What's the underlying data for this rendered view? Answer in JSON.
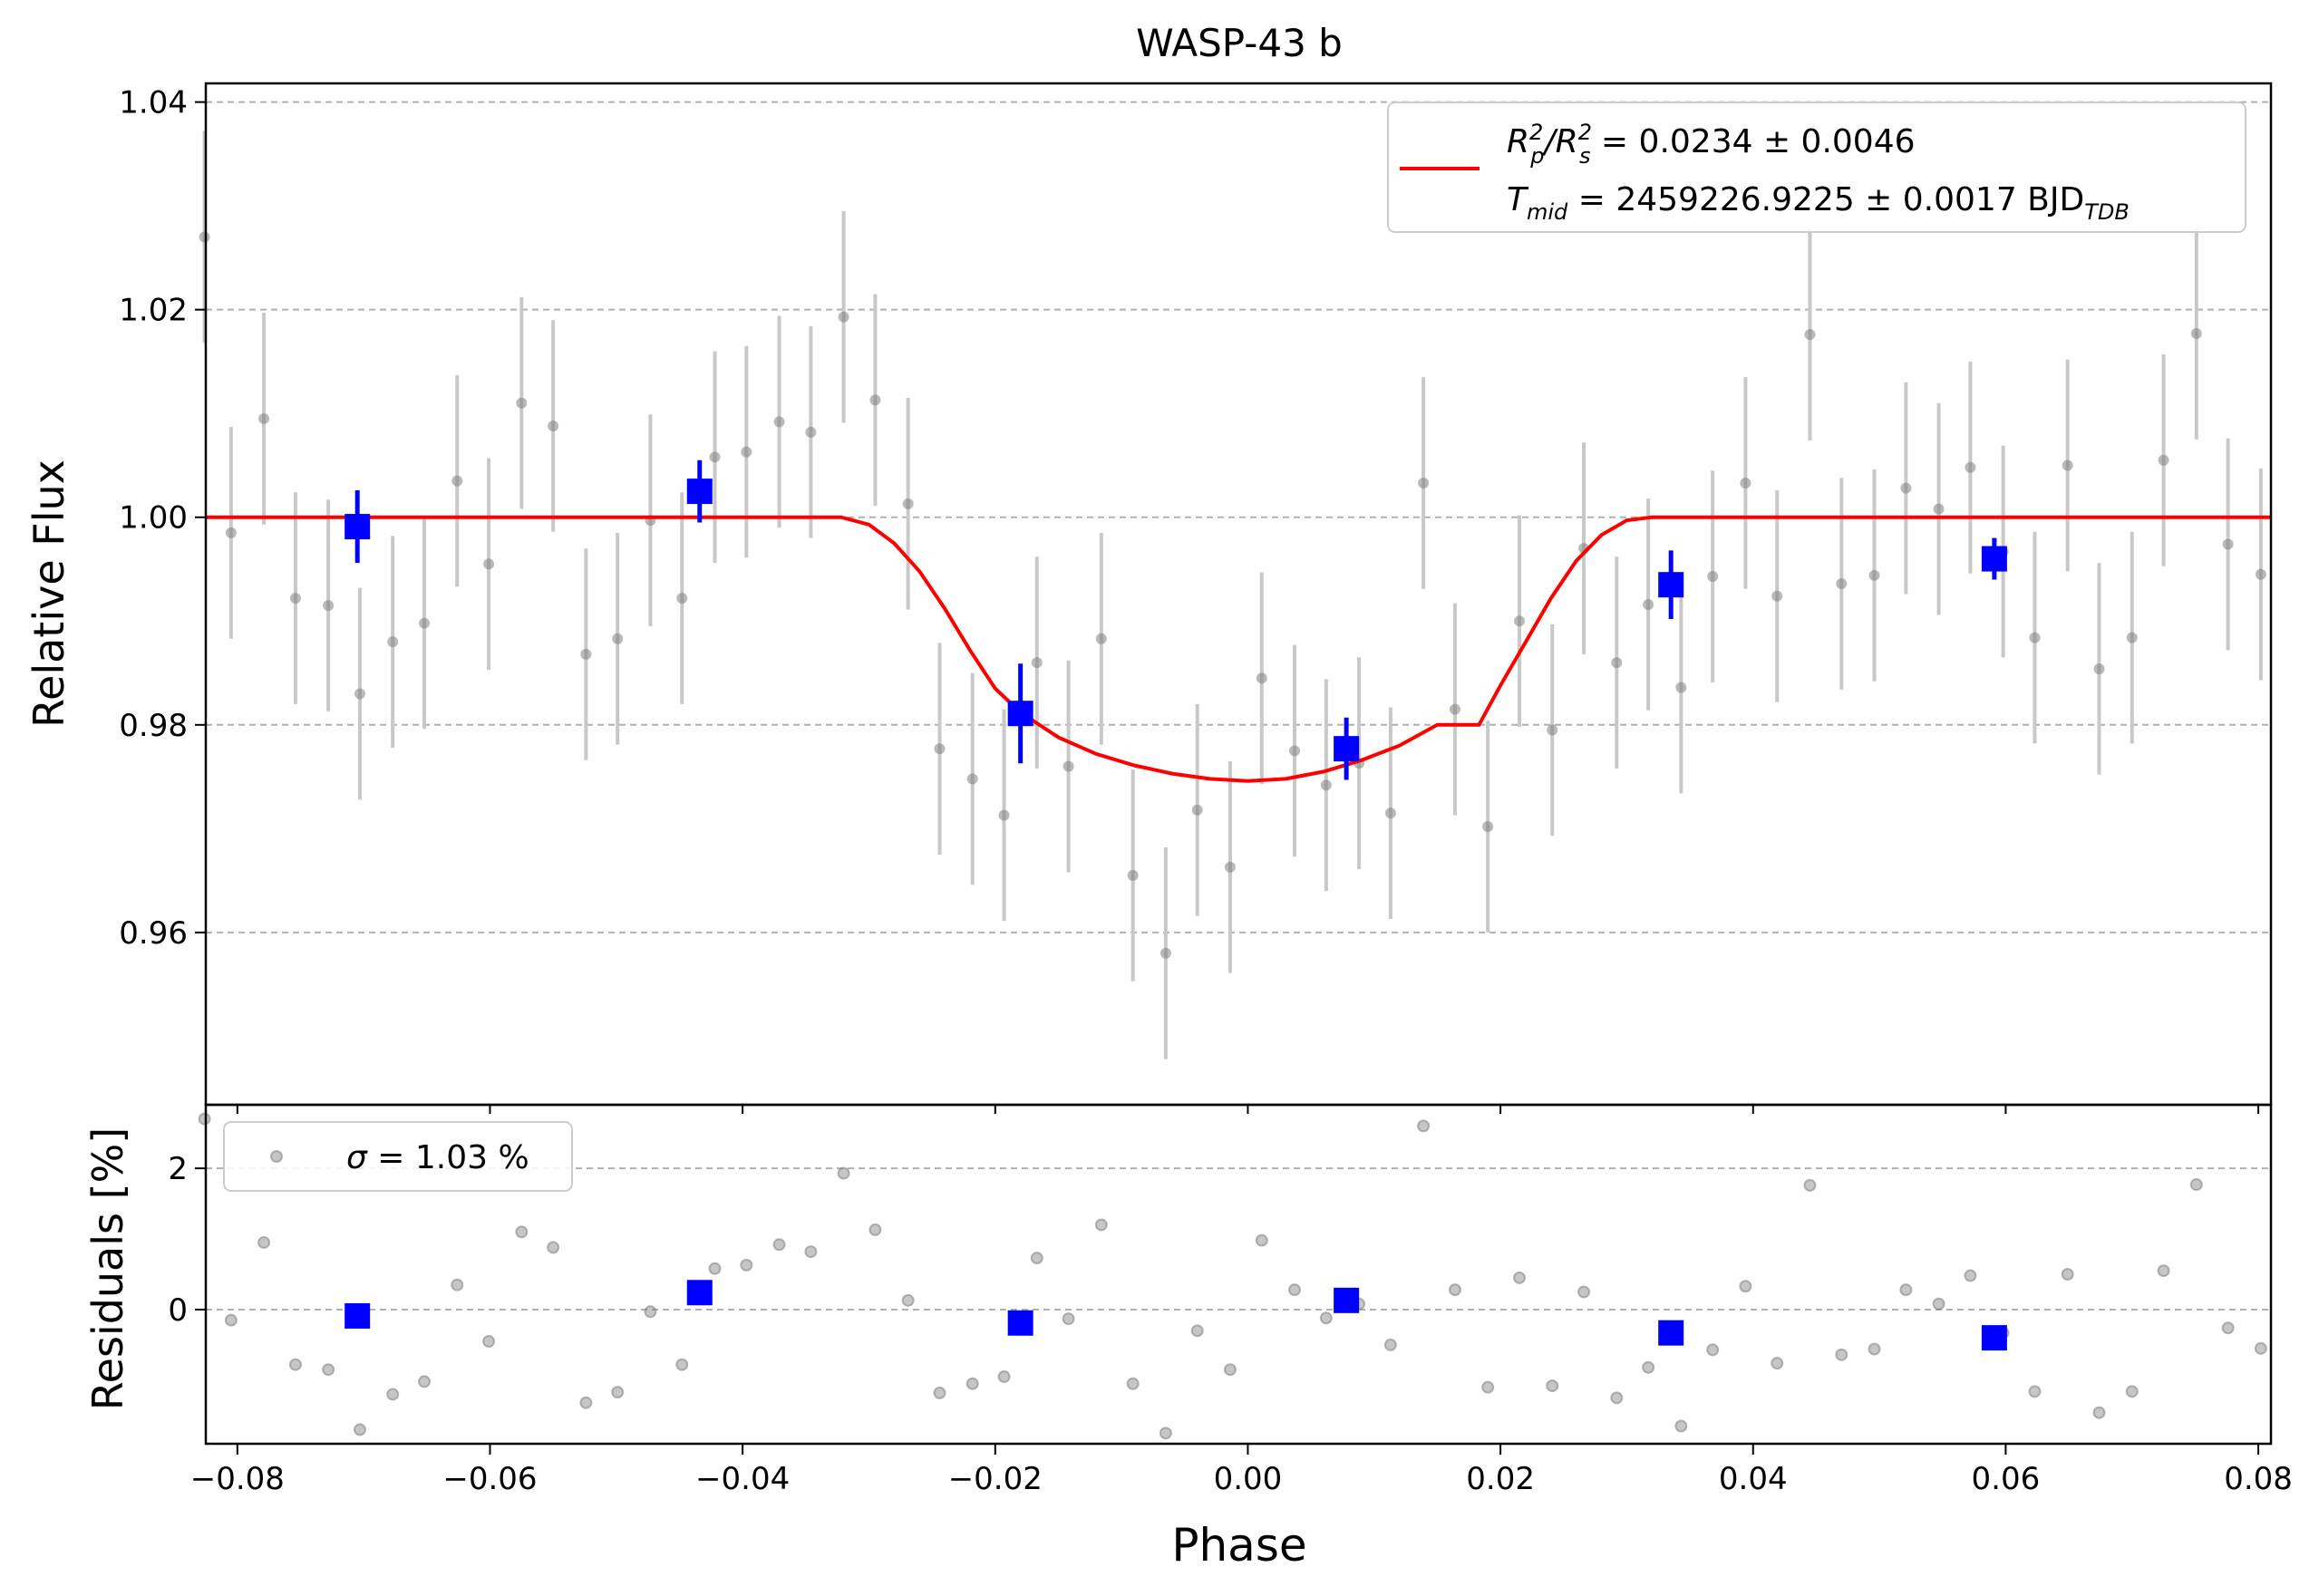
{
  "chart_data": [
    {
      "panel": "main",
      "type": "scatter",
      "title": "WASP-43 b",
      "xlabel": "",
      "ylabel": "Relative Flux",
      "xlim": [
        -0.0825,
        0.081
      ],
      "ylim": [
        0.9434,
        1.0418
      ],
      "yticks": [
        0.96,
        0.98,
        1.0,
        1.02,
        1.04
      ],
      "ytick_labels": [
        "0.96",
        "0.98",
        "1.00",
        "1.02",
        "1.04"
      ],
      "grid": "horizontal dashed",
      "legend_placement": "top-right",
      "legend": {
        "line_label_1": {
          "pre": "R",
          "sub1": "p",
          "sup1": "2",
          "mid": "/R",
          "sub2": "s",
          "sup2": "2",
          "post": " = 0.0234 ± 0.0046"
        },
        "line_label_2": {
          "pre": "T",
          "sub1": "mid",
          "post": " = 2459226.9225 ± 0.0017 BJD",
          "sub2": "TDB"
        }
      },
      "colors": {
        "data": "#808080",
        "errorbar": "#c8c8c8",
        "binned": "#0000ff",
        "model": "#ff0000"
      },
      "model": {
        "phase": [
          -0.0825,
          -0.0322,
          -0.03,
          -0.028,
          -0.026,
          -0.024,
          -0.022,
          -0.02,
          -0.018,
          -0.015,
          -0.012,
          -0.009,
          -0.006,
          -0.003,
          0.0,
          0.003,
          0.006,
          0.009,
          0.012,
          0.015,
          0.0183,
          0.02,
          0.022,
          0.024,
          0.026,
          0.028,
          0.03,
          0.032,
          0.081
        ],
        "flux": [
          1.0,
          1.0,
          0.9993,
          0.9975,
          0.9948,
          0.9912,
          0.9872,
          0.9835,
          0.9812,
          0.9788,
          0.9772,
          0.9761,
          0.9753,
          0.9748,
          0.9746,
          0.9748,
          0.9755,
          0.9766,
          0.978,
          0.98,
          0.98,
          0.9838,
          0.988,
          0.9922,
          0.9958,
          0.9983,
          0.9997,
          1.0,
          1.0
        ]
      },
      "data": {
        "phase": [
          -0.0826,
          -0.0805,
          -0.0779,
          -0.0754,
          -0.0728,
          -0.0703,
          -0.0677,
          -0.0652,
          -0.0626,
          -0.0601,
          -0.0575,
          -0.055,
          -0.0524,
          -0.0499,
          -0.0473,
          -0.0448,
          -0.0422,
          -0.0397,
          -0.0371,
          -0.0346,
          -0.032,
          -0.0295,
          -0.0269,
          -0.0244,
          -0.0218,
          -0.0193,
          -0.0167,
          -0.0142,
          -0.0116,
          -0.0091,
          -0.0065,
          -0.004,
          -0.0014,
          0.0011,
          0.0037,
          0.0062,
          0.0088,
          0.0113,
          0.0139,
          0.0164,
          0.019,
          0.0215,
          0.0241,
          0.0266,
          0.0292,
          0.0317,
          0.0343,
          0.0368,
          0.0394,
          0.0419,
          0.0445,
          0.047,
          0.0496,
          0.0521,
          0.0547,
          0.0572,
          0.0598,
          0.0623,
          0.0649,
          0.0674,
          0.07,
          0.0725,
          0.0751,
          0.0776,
          0.0802
        ],
        "flux": [
          1.027,
          0.9985,
          1.0095,
          0.9922,
          0.9915,
          0.983,
          0.988,
          0.9898,
          1.0035,
          0.9955,
          1.011,
          1.0088,
          0.9868,
          0.9883,
          0.9997,
          0.9922,
          1.0058,
          1.0063,
          1.0092,
          1.0082,
          1.0193,
          1.0113,
          1.0013,
          0.9777,
          0.9748,
          0.9713,
          0.986,
          0.976,
          0.9883,
          0.9655,
          0.958,
          0.9718,
          0.9663,
          0.9845,
          0.9775,
          0.9742,
          0.9763,
          0.9715,
          1.0033,
          0.9815,
          0.9702,
          0.99,
          0.9795,
          0.997,
          0.986,
          0.9916,
          0.9836,
          0.9943,
          1.0033,
          0.9924,
          1.0176,
          0.9936,
          0.9944,
          1.0028,
          1.0008,
          1.0048,
          0.9967,
          0.9884,
          1.005,
          0.9854,
          0.9884,
          1.0055,
          1.0177,
          0.9974,
          0.9945
        ],
        "error": [
          0.0102,
          0.0102,
          0.0102,
          0.0102,
          0.0102,
          0.0102,
          0.0102,
          0.0102,
          0.0102,
          0.0102,
          0.0102,
          0.0102,
          0.0102,
          0.0102,
          0.0102,
          0.0102,
          0.0102,
          0.0102,
          0.0102,
          0.0102,
          0.0102,
          0.0102,
          0.0102,
          0.0102,
          0.0102,
          0.0102,
          0.0102,
          0.0102,
          0.0102,
          0.0102,
          0.0102,
          0.0102,
          0.0102,
          0.0102,
          0.0102,
          0.0102,
          0.0102,
          0.0102,
          0.0102,
          0.0102,
          0.0102,
          0.0102,
          0.0102,
          0.0102,
          0.0102,
          0.0102,
          0.0102,
          0.0102,
          0.0102,
          0.0102,
          0.0102,
          0.0102,
          0.0102,
          0.0102,
          0.0102,
          0.0102,
          0.0102,
          0.0102,
          0.0102,
          0.0102,
          0.0102,
          0.0102,
          0.0102,
          0.0102,
          0.0102
        ]
      },
      "binned": {
        "phase": [
          -0.0705,
          -0.0434,
          -0.018,
          0.0078,
          0.0335,
          0.0591
        ],
        "flux": [
          0.9991,
          1.0025,
          0.9811,
          0.9777,
          0.9935,
          0.996
        ],
        "error": [
          0.0035,
          0.003,
          0.0048,
          0.003,
          0.0033,
          0.002
        ]
      }
    },
    {
      "panel": "residuals",
      "type": "scatter",
      "xlabel": "Phase",
      "ylabel": "Residuals [%]",
      "xlim": [
        -0.0825,
        0.081
      ],
      "ylim": [
        -1.9,
        2.9
      ],
      "xticks": [
        -0.08,
        -0.06,
        -0.04,
        -0.02,
        0.0,
        0.02,
        0.04,
        0.06,
        0.08
      ],
      "xtick_labels": [
        "−0.08",
        "−0.06",
        "−0.04",
        "−0.02",
        "0.00",
        "0.02",
        "0.04",
        "0.06",
        "0.08"
      ],
      "yticks": [
        0,
        2
      ],
      "ytick_labels": [
        "0",
        "2"
      ],
      "grid": "horizontal dashed",
      "legend_placement": "top-left",
      "legend": {
        "sigma_symbol": "σ",
        "sigma_text": " = 1.03 %"
      },
      "data": {
        "phase": [
          -0.0826,
          -0.0805,
          -0.0779,
          -0.0754,
          -0.0728,
          -0.0703,
          -0.0677,
          -0.0652,
          -0.0626,
          -0.0601,
          -0.0575,
          -0.055,
          -0.0524,
          -0.0499,
          -0.0473,
          -0.0448,
          -0.0422,
          -0.0397,
          -0.0371,
          -0.0346,
          -0.032,
          -0.0295,
          -0.0269,
          -0.0244,
          -0.0218,
          -0.0193,
          -0.0167,
          -0.0142,
          -0.0116,
          -0.0091,
          -0.0065,
          -0.004,
          -0.0014,
          0.0011,
          0.0037,
          0.0062,
          0.0088,
          0.0113,
          0.0139,
          0.0164,
          0.019,
          0.0215,
          0.0241,
          0.0266,
          0.0292,
          0.0317,
          0.0343,
          0.0368,
          0.0394,
          0.0419,
          0.0445,
          0.047,
          0.0496,
          0.0521,
          0.0547,
          0.0572,
          0.0598,
          0.0623,
          0.0649,
          0.0674,
          0.07,
          0.0725,
          0.0751,
          0.0776,
          0.0802
        ],
        "resid": [
          2.7,
          -0.15,
          0.95,
          -0.78,
          -0.85,
          -1.7,
          -1.2,
          -1.02,
          0.35,
          -0.45,
          1.1,
          0.88,
          -1.32,
          -1.17,
          -0.03,
          -0.78,
          0.58,
          0.63,
          0.92,
          0.82,
          1.93,
          1.13,
          0.13,
          -1.18,
          -1.05,
          -0.95,
          0.73,
          -0.13,
          1.2,
          -1.05,
          -1.75,
          -0.3,
          -0.85,
          0.98,
          0.28,
          -0.12,
          0.08,
          -0.5,
          2.6,
          0.28,
          -1.1,
          0.45,
          -1.08,
          0.25,
          -1.25,
          -0.82,
          -1.65,
          -0.57,
          0.33,
          -0.76,
          1.76,
          -0.64,
          -0.56,
          0.28,
          0.08,
          0.48,
          -0.33,
          -1.16,
          0.5,
          -1.46,
          -1.16,
          0.55,
          1.77,
          -0.26,
          -0.55
        ]
      },
      "binned": {
        "phase": [
          -0.0705,
          -0.0434,
          -0.018,
          0.0078,
          0.0335,
          0.0591
        ],
        "resid": [
          -0.09,
          0.24,
          -0.19,
          0.13,
          -0.33,
          -0.4
        ]
      }
    }
  ]
}
